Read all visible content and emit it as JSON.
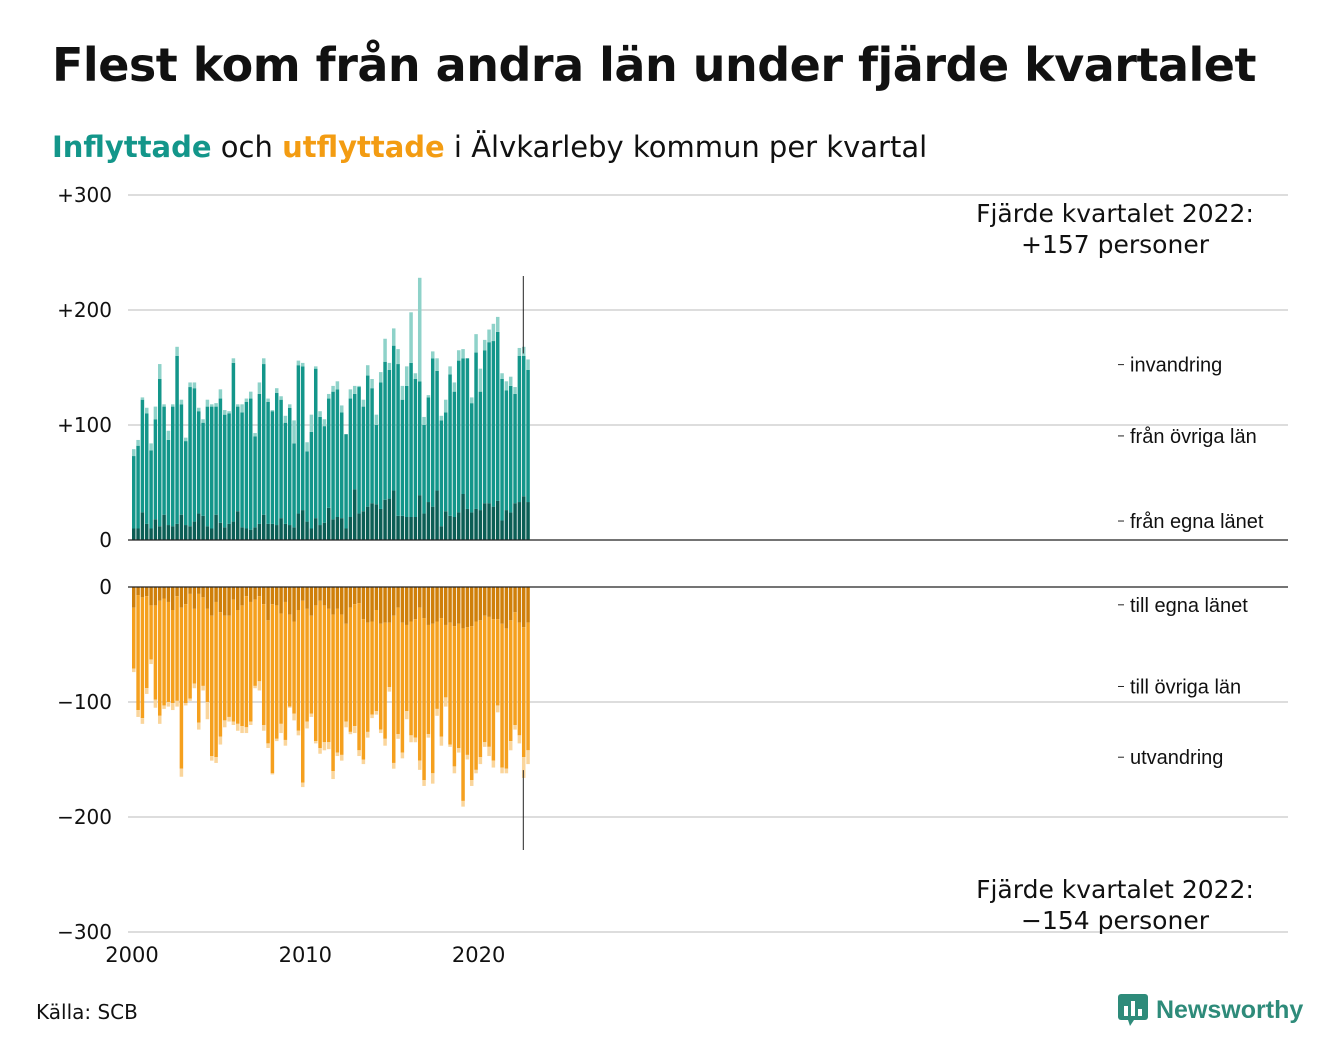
{
  "header": {
    "title": "Flest kom från andra län under fjärde kvartalet",
    "subtitle_in": "Inflyttade",
    "subtitle_mid": " och ",
    "subtitle_out": "utflyttade",
    "subtitle_rest": " i Älvkarleby kommun per kvartal"
  },
  "footer": {
    "source": "Källa: SCB",
    "brand": "Newsworthy"
  },
  "colors": {
    "in_own": "#0b5e55",
    "in_other": "#13968a",
    "in_immigration": "#8ed2c9",
    "out_own": "#cf7f0a",
    "out_other": "#f5a01e",
    "out_emigration": "#fad59b",
    "grid": "#dddddd",
    "brand": "#2e8b7a"
  },
  "chart_data": {
    "type": "bar",
    "stacked": true,
    "diverging": true,
    "x_start": "2000 Q1",
    "x_end": "2022 Q4",
    "xticks": [
      "2000",
      "2010",
      "2020"
    ],
    "upper_panel": {
      "ylim": [
        0,
        300
      ],
      "yticks": [
        "0",
        "+100",
        "+200",
        "+300"
      ],
      "layer_labels": [
        "invandring",
        "från övriga län",
        "från egna länet"
      ],
      "series": [
        {
          "name": "från egna länet",
          "values": [
            10,
            10,
            24,
            14,
            10,
            18,
            12,
            22,
            13,
            12,
            14,
            22,
            13,
            12,
            16,
            23,
            21,
            12,
            10,
            22,
            15,
            11,
            14,
            16,
            25,
            11,
            10,
            9,
            11,
            14,
            22,
            14,
            14,
            13,
            19,
            14,
            13,
            11,
            23,
            26,
            16,
            10,
            19,
            13,
            15,
            28,
            18,
            20,
            19,
            10,
            20,
            44,
            23,
            25,
            29,
            32,
            31,
            27,
            35,
            36,
            43,
            21,
            21,
            20,
            20,
            20,
            39,
            23,
            33,
            29,
            43,
            12,
            25,
            21,
            20,
            24,
            40,
            27,
            24,
            27,
            26,
            32,
            32,
            29,
            34,
            17,
            26,
            24,
            32,
            33,
            38,
            33
          ]
        },
        {
          "name": "från övriga län",
          "values": [
            63,
            72,
            98,
            96,
            68,
            87,
            128,
            94,
            74,
            104,
            146,
            96,
            73,
            121,
            116,
            89,
            81,
            104,
            106,
            94,
            108,
            98,
            96,
            138,
            91,
            100,
            110,
            114,
            79,
            113,
            131,
            106,
            98,
            115,
            103,
            88,
            102,
            73,
            129,
            125,
            61,
            84,
            130,
            94,
            84,
            95,
            111,
            111,
            92,
            82,
            103,
            83,
            110,
            91,
            114,
            100,
            69,
            110,
            120,
            112,
            126,
            132,
            101,
            114,
            134,
            120,
            99,
            77,
            91,
            129,
            104,
            92,
            86,
            123,
            109,
            132,
            118,
            131,
            95,
            136,
            103,
            133,
            140,
            144,
            147,
            123,
            104,
            110,
            95,
            127,
            122,
            115
          ]
        },
        {
          "name": "invandring",
          "values": [
            6,
            5,
            2,
            5,
            6,
            11,
            13,
            2,
            8,
            2,
            8,
            4,
            3,
            4,
            5,
            3,
            3,
            6,
            2,
            3,
            8,
            4,
            2,
            4,
            2,
            7,
            3,
            6,
            3,
            10,
            5,
            3,
            1,
            4,
            3,
            6,
            3,
            20,
            4,
            3,
            8,
            15,
            2,
            5,
            6,
            4,
            5,
            7,
            6,
            0,
            8,
            7,
            1,
            6,
            9,
            8,
            9,
            9,
            20,
            6,
            15,
            13,
            12,
            17,
            44,
            5,
            90,
            7,
            2,
            6,
            11,
            4,
            11,
            7,
            8,
            9,
            8,
            0,
            5,
            16,
            20,
            9,
            11,
            15,
            13,
            5,
            8,
            8,
            6,
            7,
            8,
            9
          ]
        }
      ],
      "annotation": [
        "Fjärde kvartalet 2022:",
        "+157 personer"
      ]
    },
    "lower_panel": {
      "ylim": [
        -300,
        0
      ],
      "yticks": [
        "0",
        "−100",
        "−200",
        "−300"
      ],
      "layer_labels": [
        "till egna länet",
        "till övriga län",
        "utvandring"
      ],
      "series": [
        {
          "name": "till egna länet",
          "values": [
            -18,
            -7,
            -9,
            -8,
            -16,
            -16,
            -12,
            -10,
            -13,
            -20,
            -8,
            -18,
            -15,
            -6,
            -19,
            -6,
            -9,
            -19,
            -25,
            -13,
            -22,
            -25,
            -25,
            -11,
            -20,
            -16,
            -8,
            -13,
            -11,
            -8,
            -15,
            -29,
            -15,
            -16,
            -23,
            -13,
            -24,
            -30,
            -20,
            -12,
            -19,
            -25,
            -16,
            -12,
            -16,
            -19,
            -24,
            -19,
            -24,
            -32,
            -18,
            -15,
            -14,
            -28,
            -31,
            -30,
            -20,
            -32,
            -31,
            -31,
            -25,
            -18,
            -31,
            -33,
            -30,
            -28,
            -18,
            -27,
            -33,
            -32,
            -30,
            -27,
            -33,
            -31,
            -34,
            -32,
            -36,
            -35,
            -34,
            -30,
            -29,
            -25,
            -26,
            -28,
            -28,
            -32,
            -36,
            -29,
            -22,
            -31,
            -35,
            -31
          ]
        },
        {
          "name": "till övriga län",
          "values": [
            -53,
            -100,
            -105,
            -80,
            -47,
            -82,
            -100,
            -93,
            -87,
            -81,
            -91,
            -140,
            -86,
            -91,
            -65,
            -112,
            -77,
            -81,
            -122,
            -135,
            -108,
            -91,
            -88,
            -106,
            -99,
            -105,
            -114,
            -104,
            -75,
            -74,
            -105,
            -107,
            -147,
            -116,
            -96,
            -120,
            -80,
            -80,
            -105,
            -158,
            -98,
            -85,
            -118,
            -128,
            -119,
            -116,
            -136,
            -125,
            -122,
            -85,
            -108,
            -106,
            -128,
            -122,
            -95,
            -81,
            -88,
            -92,
            -101,
            -56,
            -128,
            -110,
            -113,
            -75,
            -99,
            -103,
            -133,
            -141,
            -95,
            -130,
            -76,
            -103,
            -63,
            -106,
            -122,
            -108,
            -150,
            -111,
            -134,
            -129,
            -119,
            -110,
            -113,
            -123,
            -75,
            -125,
            -122,
            -105,
            -98,
            -98,
            -113,
            -111
          ]
        },
        {
          "name": "utvandring",
          "values": [
            -3,
            -6,
            -5,
            -5,
            -4,
            -7,
            -7,
            -3,
            -4,
            -6,
            -5,
            -7,
            -2,
            -2,
            -4,
            -6,
            -4,
            -15,
            -4,
            -5,
            -7,
            -6,
            -4,
            -3,
            -6,
            -6,
            -5,
            -3,
            -2,
            -8,
            -5,
            -4,
            -1,
            -2,
            -8,
            -5,
            -1,
            -6,
            -4,
            -4,
            -6,
            -3,
            -2,
            -5,
            -7,
            -6,
            -7,
            -3,
            -5,
            -5,
            -2,
            -6,
            -5,
            -4,
            -5,
            -3,
            -3,
            -3,
            -6,
            -4,
            -5,
            -4,
            -5,
            -7,
            -6,
            -4,
            -8,
            -5,
            -3,
            -9,
            -6,
            -8,
            -8,
            -2,
            -6,
            -4,
            -5,
            -4,
            -5,
            -3,
            -6,
            -4,
            -8,
            -6,
            -6,
            -5,
            -4,
            -8,
            -4,
            -7,
            -18,
            -12
          ]
        }
      ],
      "annotation": [
        "Fjärde kvartalet 2022:",
        "−154 personer"
      ]
    }
  }
}
